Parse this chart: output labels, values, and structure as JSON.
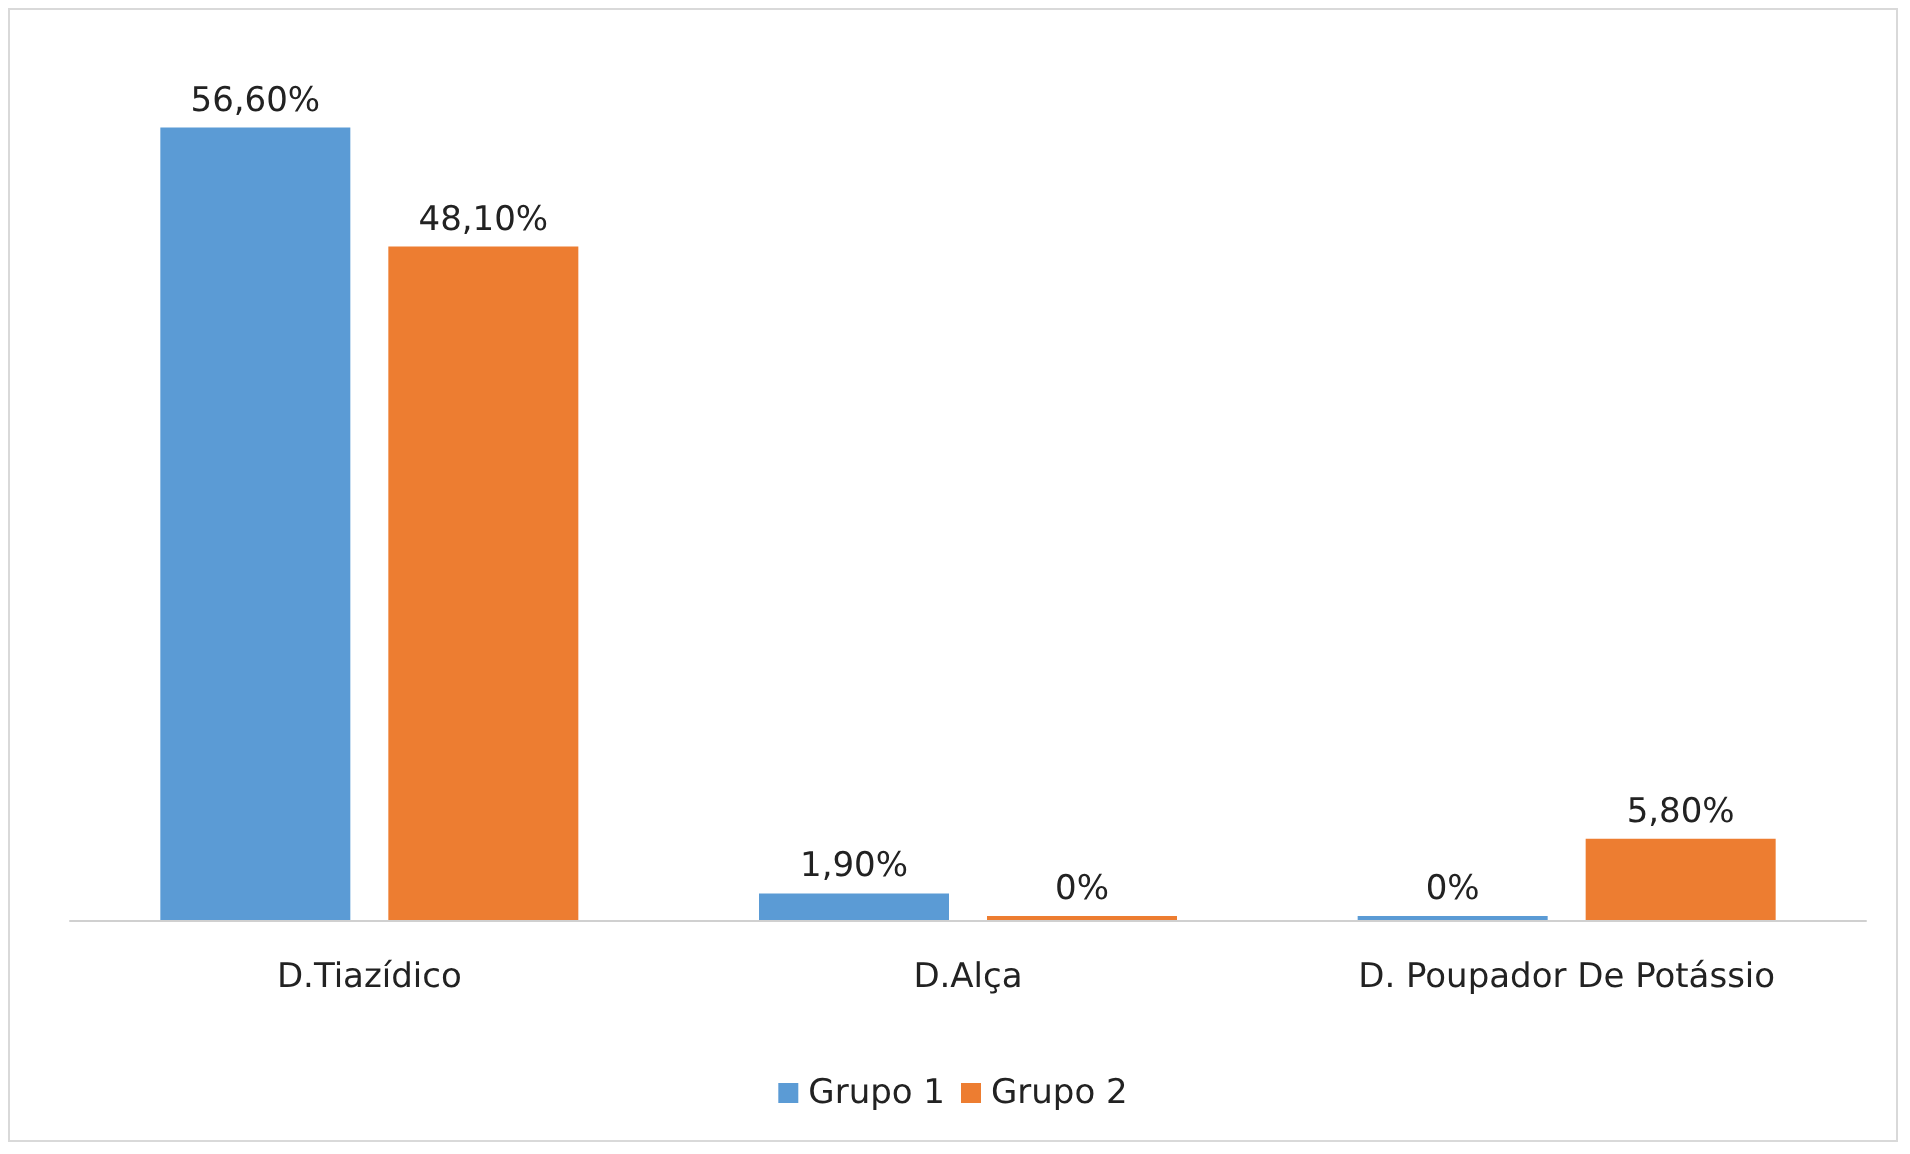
{
  "chart_data": {
    "type": "bar",
    "categories": [
      "D.Tiazídico",
      "D.Alça",
      "D. Poupador De Potássio"
    ],
    "series": [
      {
        "name": "Grupo 1",
        "color": "#5b9bd5",
        "values": [
          56.6,
          1.9,
          0
        ],
        "value_labels": [
          "56,60%",
          "1,90%",
          "0%"
        ]
      },
      {
        "name": "Grupo 2",
        "color": "#ed7d31",
        "values": [
          48.1,
          0,
          5.8
        ],
        "value_labels": [
          "48,10%",
          "0%",
          "5,80%"
        ]
      }
    ],
    "legend": "bottom"
  }
}
